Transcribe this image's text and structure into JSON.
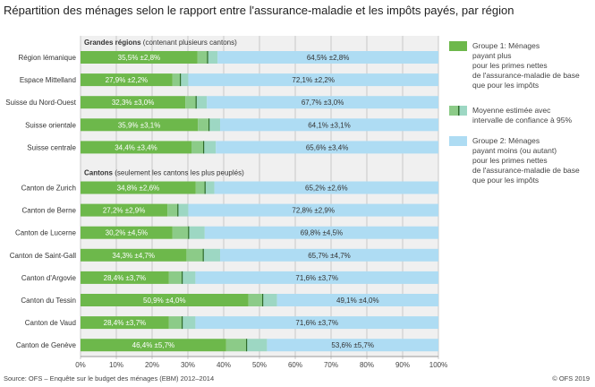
{
  "title": "Répartition des ménages selon le rapport entre l'assurance-maladie et les impôts payés, par région",
  "source": "Source: OFS – Enquête sur le budget des ménages (EBM) 2012–2014",
  "copyright": "© OFS 2019",
  "colors": {
    "group1": "#6db84b",
    "ci_low": "#8ccb88",
    "ci_high": "#9dd7c3",
    "mean": "#2f6b2a",
    "group2": "#aedcf3",
    "plot_bg": "#f0f0f0"
  },
  "legend": [
    {
      "key": "group1",
      "label": "Groupe 1: Ménages\npayant plus\npour les primes nettes\nde l'assurance-maladie de base\nque pour les impôts"
    },
    {
      "key": "ci",
      "label": "Moyenne estimée avec\nintervalle de confiance à 95%"
    },
    {
      "key": "group2",
      "label": "Groupe 2: Ménages\npayant moins (ou autant)\npour les primes nettes\nde l'assurance-maladie de base\nque pour les impôts"
    }
  ],
  "chart_data": {
    "type": "bar",
    "orientation": "horizontal",
    "stacked": true,
    "xlim": [
      0,
      100
    ],
    "grid": true,
    "xticks": [
      "0%",
      "10%",
      "20%",
      "30%",
      "40%",
      "50%",
      "60%",
      "70%",
      "80%",
      "90%",
      "100%"
    ],
    "groups": [
      {
        "header_bold": "Grandes régions",
        "header_rest": " (contenant plusieurs cantons)",
        "rows": [
          {
            "label": "Région lémanique",
            "g1": 35.5,
            "ci1": 2.8,
            "g2": 64.5,
            "ci2": 2.8,
            "l1": "35,5% ±2,8%",
            "l2": "64,5% ±2,8%"
          },
          {
            "label": "Espace Mittelland",
            "g1": 27.9,
            "ci1": 2.2,
            "g2": 72.1,
            "ci2": 2.2,
            "l1": "27,9% ±2,2%",
            "l2": "72,1% ±2,2%"
          },
          {
            "label": "Suisse du Nord-Ouest",
            "g1": 32.3,
            "ci1": 3.0,
            "g2": 67.7,
            "ci2": 3.0,
            "l1": "32,3% ±3,0%",
            "l2": "67,7% ±3,0%"
          },
          {
            "label": "Suisse orientale",
            "g1": 35.9,
            "ci1": 3.1,
            "g2": 64.1,
            "ci2": 3.1,
            "l1": "35,9% ±3,1%",
            "l2": "64,1% ±3,1%"
          },
          {
            "label": "Suisse centrale",
            "g1": 34.4,
            "ci1": 3.4,
            "g2": 65.6,
            "ci2": 3.4,
            "l1": "34,4% ±3,4%",
            "l2": "65,6% ±3,4%"
          }
        ]
      },
      {
        "header_bold": "Cantons",
        "header_rest": " (seulement les cantons les plus peuplés)",
        "rows": [
          {
            "label": "Canton de Zurich",
            "g1": 34.8,
            "ci1": 2.6,
            "g2": 65.2,
            "ci2": 2.6,
            "l1": "34,8% ±2,6%",
            "l2": "65,2% ±2,6%"
          },
          {
            "label": "Canton de Berne",
            "g1": 27.2,
            "ci1": 2.9,
            "g2": 72.8,
            "ci2": 2.9,
            "l1": "27,2% ±2,9%",
            "l2": "72,8% ±2,9%"
          },
          {
            "label": "Canton de Lucerne",
            "g1": 30.2,
            "ci1": 4.5,
            "g2": 69.8,
            "ci2": 4.5,
            "l1": "30,2% ±4,5%",
            "l2": "69,8% ±4,5%"
          },
          {
            "label": "Canton de Saint-Gall",
            "g1": 34.3,
            "ci1": 4.7,
            "g2": 65.7,
            "ci2": 4.7,
            "l1": "34,3% ±4,7%",
            "l2": "65,7% ±4,7%"
          },
          {
            "label": "Canton d'Argovie",
            "g1": 28.4,
            "ci1": 3.7,
            "g2": 71.6,
            "ci2": 3.7,
            "l1": "28,4% ±3,7%",
            "l2": "71,6% ±3,7%"
          },
          {
            "label": "Canton du Tessin",
            "g1": 50.9,
            "ci1": 4.0,
            "g2": 49.1,
            "ci2": 4.0,
            "l1": "50,9% ±4,0%",
            "l2": "49,1% ±4,0%"
          },
          {
            "label": "Canton de Vaud",
            "g1": 28.4,
            "ci1": 3.7,
            "g2": 71.6,
            "ci2": 3.7,
            "l1": "28,4% ±3,7%",
            "l2": "71,6% ±3,7%"
          },
          {
            "label": "Canton de Genève",
            "g1": 46.4,
            "ci1": 5.7,
            "g2": 53.6,
            "ci2": 5.7,
            "l1": "46,4% ±5,7%",
            "l2": "53,6% ±5,7%"
          }
        ]
      }
    ]
  }
}
